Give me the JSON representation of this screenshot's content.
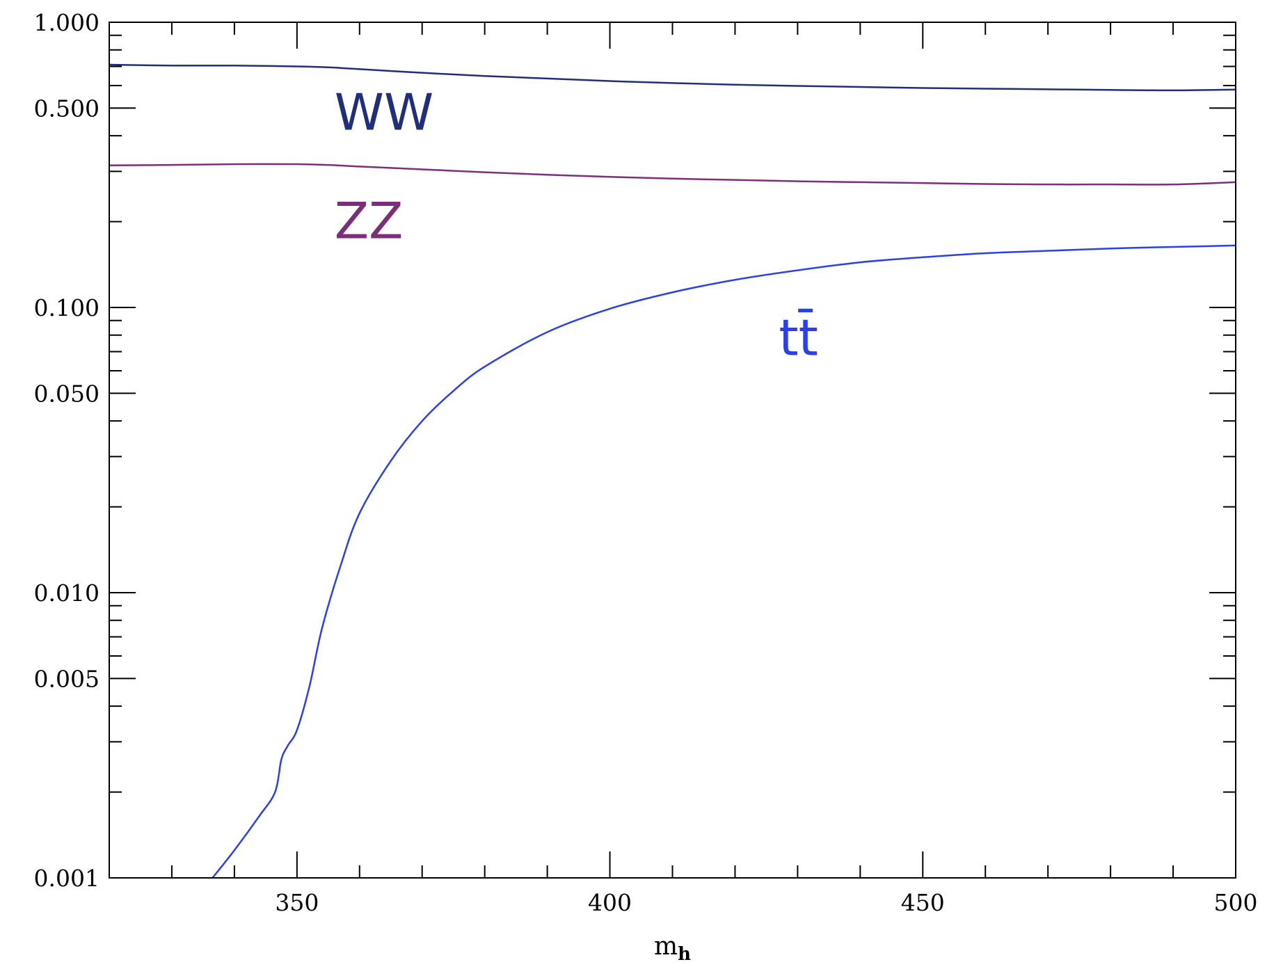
{
  "chart_data": {
    "type": "line",
    "xlabel": "m",
    "xlabel_sub": "h",
    "ylabel": "",
    "xlim": [
      320,
      500
    ],
    "ylim": [
      0.001,
      1.0
    ],
    "yscale": "log",
    "grid": false,
    "x_ticks": [
      {
        "value": 350,
        "label": "350"
      },
      {
        "value": 400,
        "label": "400"
      },
      {
        "value": 450,
        "label": "450"
      },
      {
        "value": 500,
        "label": "500"
      }
    ],
    "y_ticks": [
      {
        "value": 1.0,
        "label": "1.000"
      },
      {
        "value": 0.5,
        "label": "0.500"
      },
      {
        "value": 0.1,
        "label": "0.100"
      },
      {
        "value": 0.05,
        "label": "0.050"
      },
      {
        "value": 0.01,
        "label": "0.010"
      },
      {
        "value": 0.005,
        "label": "0.005"
      },
      {
        "value": 0.001,
        "label": "0.001"
      }
    ],
    "series": [
      {
        "name": "WW",
        "color": "#1f2f7e",
        "label_at": [
          356,
          0.42
        ],
        "x": [
          320,
          330,
          340,
          350,
          355,
          360,
          370,
          380,
          390,
          400,
          410,
          420,
          430,
          440,
          450,
          460,
          470,
          480,
          490,
          500
        ],
        "y": [
          0.71,
          0.705,
          0.705,
          0.7,
          0.695,
          0.685,
          0.665,
          0.648,
          0.635,
          0.622,
          0.612,
          0.604,
          0.598,
          0.593,
          0.588,
          0.585,
          0.582,
          0.579,
          0.577,
          0.581
        ]
      },
      {
        "name": "ZZ",
        "color": "#7b2f7a",
        "label_at": [
          356,
          0.175
        ],
        "x": [
          320,
          330,
          340,
          350,
          355,
          360,
          370,
          380,
          390,
          400,
          410,
          420,
          430,
          440,
          450,
          460,
          470,
          480,
          490,
          500
        ],
        "y": [
          0.315,
          0.316,
          0.318,
          0.318,
          0.316,
          0.312,
          0.305,
          0.298,
          0.292,
          0.287,
          0.283,
          0.28,
          0.277,
          0.275,
          0.273,
          0.271,
          0.27,
          0.27,
          0.27,
          0.275
        ]
      },
      {
        "name": "tt̄",
        "color": "#2a3ff0",
        "label_at": [
          427,
          0.068
        ],
        "x": [
          336.5,
          340,
          344,
          346.5,
          347.5,
          348.5,
          350,
          352,
          354,
          357,
          360,
          365,
          370,
          375,
          380,
          390,
          400,
          410,
          420,
          430,
          440,
          450,
          460,
          470,
          480,
          490,
          500
        ],
        "y": [
          0.001,
          0.00125,
          0.00165,
          0.002,
          0.0026,
          0.0029,
          0.0033,
          0.0047,
          0.0075,
          0.0125,
          0.019,
          0.029,
          0.04,
          0.051,
          0.062,
          0.082,
          0.099,
          0.113,
          0.125,
          0.135,
          0.144,
          0.15,
          0.155,
          0.158,
          0.161,
          0.163,
          0.165
        ]
      }
    ]
  }
}
